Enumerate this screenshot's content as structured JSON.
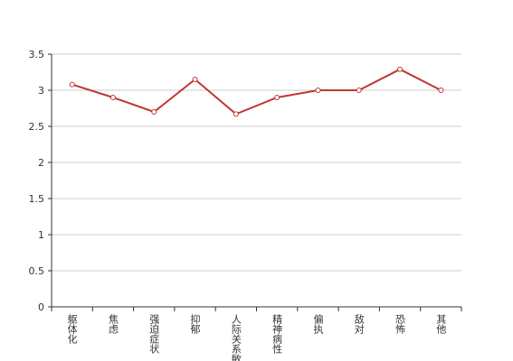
{
  "chart_data": {
    "type": "line",
    "categories": [
      "躯体化",
      "焦虑",
      "强迫症状",
      "抑郁",
      "人际关系敏感",
      "精神病性",
      "偏执",
      "敌对",
      "恐怖",
      "其他"
    ],
    "values": [
      3.08,
      2.9,
      2.7,
      3.15,
      2.67,
      2.9,
      3.0,
      3.0,
      3.29,
      3.0
    ],
    "color": "#c23531",
    "ylim": [
      0,
      3.5
    ],
    "yticks": [
      0,
      0.5,
      1,
      1.5,
      2,
      2.5,
      3,
      3.5
    ],
    "grid": true
  }
}
